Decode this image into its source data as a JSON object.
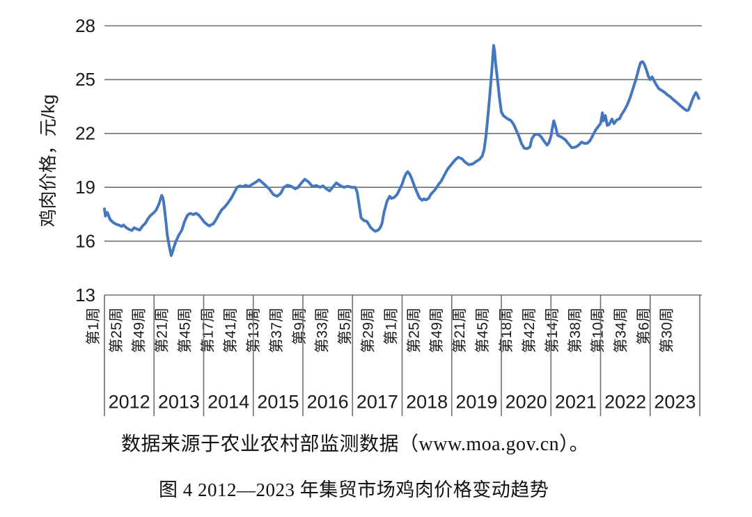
{
  "page": {
    "background": "#ffffff"
  },
  "chart_data": {
    "type": "line",
    "title": "图 4 2012—2023 年集贸市场鸡肉价格变动趋势",
    "source_note": "数据来源于农业农村部监测数据（www.moa.gov.cn）。",
    "ylabel": "鸡肉价格，元/kg",
    "ylim": [
      13,
      28
    ],
    "yticks": [
      28,
      25,
      22,
      19,
      16,
      13
    ],
    "grid": "horizontal-only",
    "legend_position": "none",
    "line_color": "#4577be",
    "grid_color": "#6e6e6e",
    "x_axis": {
      "unit": "周（weekly data）",
      "years": [
        "2012",
        "2013",
        "2014",
        "2015",
        "2016",
        "2017",
        "2018",
        "2019",
        "2020",
        "2021",
        "2022",
        "2023"
      ],
      "week_ticks": [
        {
          "label": "第1周",
          "week_index": 0
        },
        {
          "label": "第25周",
          "week_index": 24
        },
        {
          "label": "第49周",
          "week_index": 48
        },
        {
          "label": "第21周",
          "week_index": 72
        },
        {
          "label": "第45周",
          "week_index": 96
        },
        {
          "label": "第17周",
          "week_index": 120
        },
        {
          "label": "第41周",
          "week_index": 144
        },
        {
          "label": "第13周",
          "week_index": 168
        },
        {
          "label": "第37周",
          "week_index": 192
        },
        {
          "label": "第9周",
          "week_index": 216
        },
        {
          "label": "第33周",
          "week_index": 240
        },
        {
          "label": "第5周",
          "week_index": 264
        },
        {
          "label": "第29周",
          "week_index": 288
        },
        {
          "label": "第1周",
          "week_index": 312
        },
        {
          "label": "第25周",
          "week_index": 336
        },
        {
          "label": "第49周",
          "week_index": 360
        },
        {
          "label": "第21周",
          "week_index": 384
        },
        {
          "label": "第45周",
          "week_index": 408
        },
        {
          "label": "第18周",
          "week_index": 433
        },
        {
          "label": "第42周",
          "week_index": 457
        },
        {
          "label": "第14周",
          "week_index": 481
        },
        {
          "label": "第38周",
          "week_index": 505
        },
        {
          "label": "第10周",
          "week_index": 529
        },
        {
          "label": "第34周",
          "week_index": 553
        },
        {
          "label": "第6周",
          "week_index": 577
        },
        {
          "label": "第30周",
          "week_index": 601
        }
      ]
    },
    "series": [
      {
        "name": "集贸市场鸡肉价格（元/kg）",
        "x_format": "week index from 2012 week 1",
        "points": [
          [
            0,
            17.8
          ],
          [
            1,
            17.4
          ],
          [
            3,
            17.6
          ],
          [
            6,
            17.2
          ],
          [
            9,
            17.05
          ],
          [
            12,
            16.95
          ],
          [
            15,
            16.9
          ],
          [
            18,
            16.82
          ],
          [
            20,
            16.9
          ],
          [
            23,
            16.75
          ],
          [
            26,
            16.65
          ],
          [
            29,
            16.6
          ],
          [
            31,
            16.75
          ],
          [
            34,
            16.68
          ],
          [
            37,
            16.62
          ],
          [
            40,
            16.85
          ],
          [
            43,
            17.0
          ],
          [
            45,
            17.2
          ],
          [
            48,
            17.42
          ],
          [
            51,
            17.55
          ],
          [
            54,
            17.72
          ],
          [
            57,
            18.05
          ],
          [
            60,
            18.55
          ],
          [
            61,
            18.45
          ],
          [
            62,
            18.2
          ],
          [
            64,
            17.3
          ],
          [
            66,
            16.3
          ],
          [
            68,
            15.7
          ],
          [
            70,
            15.2
          ],
          [
            71,
            15.35
          ],
          [
            73,
            15.7
          ],
          [
            75,
            16.0
          ],
          [
            78,
            16.35
          ],
          [
            81,
            16.6
          ],
          [
            84,
            17.1
          ],
          [
            87,
            17.45
          ],
          [
            90,
            17.55
          ],
          [
            93,
            17.48
          ],
          [
            96,
            17.55
          ],
          [
            99,
            17.45
          ],
          [
            102,
            17.25
          ],
          [
            104,
            17.1
          ],
          [
            107,
            16.95
          ],
          [
            110,
            16.85
          ],
          [
            112,
            16.92
          ],
          [
            114,
            16.96
          ],
          [
            117,
            17.2
          ],
          [
            120,
            17.5
          ],
          [
            123,
            17.75
          ],
          [
            126,
            17.9
          ],
          [
            129,
            18.1
          ],
          [
            133,
            18.4
          ],
          [
            136,
            18.7
          ],
          [
            139,
            19.0
          ],
          [
            142,
            19.08
          ],
          [
            145,
            19.03
          ],
          [
            148,
            19.12
          ],
          [
            151,
            19.04
          ],
          [
            155,
            19.17
          ],
          [
            159,
            19.3
          ],
          [
            162,
            19.42
          ],
          [
            166,
            19.24
          ],
          [
            170,
            19.05
          ],
          [
            173,
            18.9
          ],
          [
            177,
            18.6
          ],
          [
            181,
            18.5
          ],
          [
            185,
            18.68
          ],
          [
            188,
            19.0
          ],
          [
            192,
            19.12
          ],
          [
            196,
            19.05
          ],
          [
            200,
            18.92
          ],
          [
            203,
            19.0
          ],
          [
            207,
            19.28
          ],
          [
            210,
            19.45
          ],
          [
            214,
            19.3
          ],
          [
            218,
            19.05
          ],
          [
            222,
            19.1
          ],
          [
            226,
            19.0
          ],
          [
            229,
            19.08
          ],
          [
            233,
            18.9
          ],
          [
            236,
            18.8
          ],
          [
            240,
            19.05
          ],
          [
            243,
            19.25
          ],
          [
            247,
            19.1
          ],
          [
            251,
            19.0
          ],
          [
            255,
            19.06
          ],
          [
            259,
            19.0
          ],
          [
            263,
            19.0
          ],
          [
            265,
            18.7
          ],
          [
            267,
            18.0
          ],
          [
            269,
            17.3
          ],
          [
            272,
            17.15
          ],
          [
            275,
            17.1
          ],
          [
            277,
            16.95
          ],
          [
            279,
            16.76
          ],
          [
            282,
            16.62
          ],
          [
            284,
            16.55
          ],
          [
            287,
            16.62
          ],
          [
            289,
            16.75
          ],
          [
            291,
            17.0
          ],
          [
            293,
            17.6
          ],
          [
            296,
            18.2
          ],
          [
            299,
            18.5
          ],
          [
            301,
            18.38
          ],
          [
            304,
            18.45
          ],
          [
            307,
            18.62
          ],
          [
            309,
            18.85
          ],
          [
            312,
            19.17
          ],
          [
            314,
            19.5
          ],
          [
            316,
            19.75
          ],
          [
            318,
            19.87
          ],
          [
            320,
            19.72
          ],
          [
            322,
            19.5
          ],
          [
            325,
            19.05
          ],
          [
            327,
            18.8
          ],
          [
            330,
            18.42
          ],
          [
            333,
            18.28
          ],
          [
            335,
            18.36
          ],
          [
            337,
            18.3
          ],
          [
            340,
            18.4
          ],
          [
            342,
            18.6
          ],
          [
            345,
            18.78
          ],
          [
            347,
            18.9
          ],
          [
            350,
            19.15
          ],
          [
            353,
            19.35
          ],
          [
            355,
            19.55
          ],
          [
            357,
            19.75
          ],
          [
            359,
            19.95
          ],
          [
            361,
            20.1
          ],
          [
            364,
            20.3
          ],
          [
            368,
            20.55
          ],
          [
            371,
            20.68
          ],
          [
            375,
            20.58
          ],
          [
            378,
            20.4
          ],
          [
            382,
            20.26
          ],
          [
            386,
            20.3
          ],
          [
            389,
            20.42
          ],
          [
            393,
            20.55
          ],
          [
            396,
            20.75
          ],
          [
            398,
            21.1
          ],
          [
            400,
            21.9
          ],
          [
            402,
            23.0
          ],
          [
            404,
            24.2
          ],
          [
            406,
            25.5
          ],
          [
            408,
            26.9
          ],
          [
            409,
            26.55
          ],
          [
            410,
            25.9
          ],
          [
            412,
            25.0
          ],
          [
            414,
            24.0
          ],
          [
            416,
            23.2
          ],
          [
            418,
            23.0
          ],
          [
            420,
            22.92
          ],
          [
            423,
            22.8
          ],
          [
            426,
            22.72
          ],
          [
            429,
            22.5
          ],
          [
            431,
            22.25
          ],
          [
            434,
            21.9
          ],
          [
            437,
            21.45
          ],
          [
            440,
            21.18
          ],
          [
            443,
            21.15
          ],
          [
            446,
            21.25
          ],
          [
            448,
            21.7
          ],
          [
            451,
            21.95
          ],
          [
            455,
            21.95
          ],
          [
            458,
            21.8
          ],
          [
            461,
            21.55
          ],
          [
            464,
            21.35
          ],
          [
            466,
            21.5
          ],
          [
            468,
            21.85
          ],
          [
            470,
            22.45
          ],
          [
            471,
            22.7
          ],
          [
            473,
            22.35
          ],
          [
            475,
            21.9
          ],
          [
            479,
            21.8
          ],
          [
            483,
            21.65
          ],
          [
            486,
            21.45
          ],
          [
            490,
            21.2
          ],
          [
            494,
            21.25
          ],
          [
            497,
            21.35
          ],
          [
            500,
            21.52
          ],
          [
            503,
            21.45
          ],
          [
            506,
            21.45
          ],
          [
            509,
            21.6
          ],
          [
            512,
            21.9
          ],
          [
            515,
            22.2
          ],
          [
            518,
            22.42
          ],
          [
            520,
            22.55
          ],
          [
            522,
            23.15
          ],
          [
            523,
            22.7
          ],
          [
            525,
            23.0
          ],
          [
            527,
            22.45
          ],
          [
            529,
            22.5
          ],
          [
            532,
            22.8
          ],
          [
            534,
            22.55
          ],
          [
            537,
            22.75
          ],
          [
            540,
            22.82
          ],
          [
            542,
            23.05
          ],
          [
            545,
            23.3
          ],
          [
            548,
            23.6
          ],
          [
            551,
            24.0
          ],
          [
            554,
            24.5
          ],
          [
            557,
            25.0
          ],
          [
            560,
            25.6
          ],
          [
            562,
            25.95
          ],
          [
            564,
            26.0
          ],
          [
            566,
            25.85
          ],
          [
            568,
            25.55
          ],
          [
            570,
            25.2
          ],
          [
            572,
            25.0
          ],
          [
            574,
            25.15
          ],
          [
            576,
            24.95
          ],
          [
            578,
            24.75
          ],
          [
            581,
            24.5
          ],
          [
            584,
            24.4
          ],
          [
            587,
            24.3
          ],
          [
            590,
            24.15
          ],
          [
            593,
            24.05
          ],
          [
            596,
            23.9
          ],
          [
            600,
            23.72
          ],
          [
            604,
            23.53
          ],
          [
            607,
            23.4
          ],
          [
            610,
            23.28
          ],
          [
            612,
            23.3
          ],
          [
            614,
            23.55
          ],
          [
            616,
            23.85
          ],
          [
            618,
            24.1
          ],
          [
            620,
            24.28
          ],
          [
            621,
            24.2
          ],
          [
            623,
            23.95
          ]
        ]
      }
    ]
  }
}
